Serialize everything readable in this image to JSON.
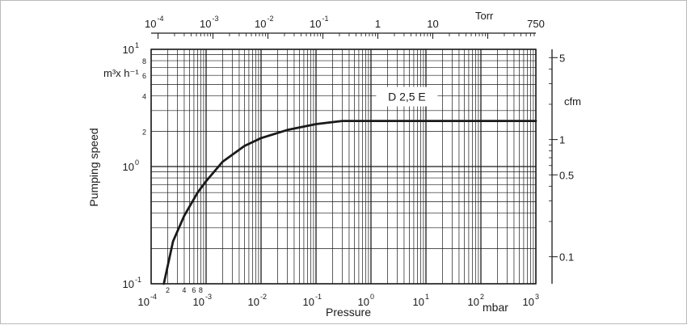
{
  "chart_data": {
    "type": "line",
    "xlabel": "Pressure",
    "ylabel": "Pumping speed",
    "x_unit": "mbar",
    "x_top_unit": "Torr",
    "y_unit": "m³x h⁻¹",
    "y_right_unit": "cfm",
    "x_scale": "log",
    "y_scale": "log",
    "xlim": [
      0.0001,
      1000
    ],
    "ylim": [
      0.1,
      10
    ],
    "grid": true,
    "x_ticks": [
      "10^-4",
      "10^-3",
      "10^-2",
      "10^-1",
      "10^0",
      "10^1",
      "10^2",
      "10^3"
    ],
    "x_minor_labels": [
      "2",
      "4",
      "6",
      "8"
    ],
    "y_ticks": [
      "10^-1",
      "10^0",
      "10^1"
    ],
    "y_minor_labels": [
      "2",
      "4",
      "6",
      "8"
    ],
    "top_axis_ticks": [
      "10^-4",
      "10^-3",
      "10^-2",
      "10^-1",
      "1",
      "10",
      "Torr",
      "750"
    ],
    "right_axis_ticks": [
      "5",
      "1",
      "0.5",
      "0.1"
    ],
    "series": [
      {
        "name": "D 2,5 E",
        "x": [
          0.00017,
          0.00025,
          0.0004,
          0.0007,
          0.001,
          0.002,
          0.005,
          0.01,
          0.03,
          0.1,
          0.3,
          1,
          10,
          100,
          1000
        ],
        "y": [
          0.1,
          0.23,
          0.38,
          0.6,
          0.75,
          1.1,
          1.5,
          1.75,
          2.05,
          2.3,
          2.45,
          2.45,
          2.45,
          2.45,
          2.45
        ]
      }
    ]
  }
}
